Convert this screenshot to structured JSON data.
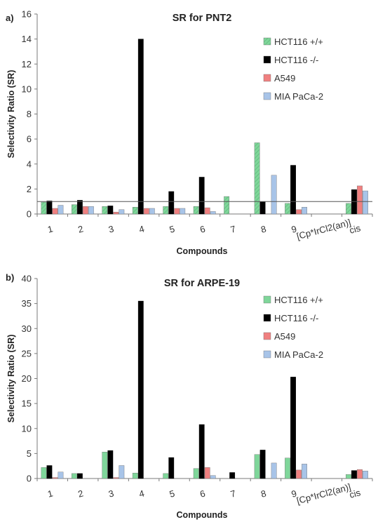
{
  "chart_data": [
    {
      "type": "bar",
      "panel_label": "a)",
      "title": "SR for PNT2",
      "xlabel": "Compounds",
      "ylabel": "Selectivity Ratio (SR)",
      "ylim": [
        0,
        16
      ],
      "yticks": [
        0,
        2,
        4,
        6,
        8,
        10,
        12,
        14,
        16
      ],
      "ref_line": 1,
      "categories": [
        "1",
        "2",
        "3",
        "4",
        "5",
        "6",
        "7",
        "8",
        "9",
        "[Cp*IrCl2(an)]",
        "cis"
      ],
      "series": [
        {
          "name": "HCT116 +/+",
          "color": "#7fd69a",
          "hatched": true,
          "values": [
            0.95,
            0.75,
            0.6,
            0.55,
            0.6,
            0.6,
            1.4,
            5.7,
            0.85,
            null,
            0.85
          ]
        },
        {
          "name": "HCT116 -/-",
          "color": "#000000",
          "hatched": false,
          "values": [
            1.05,
            1.1,
            0.65,
            14.0,
            1.8,
            2.95,
            null,
            0.98,
            3.9,
            null,
            1.95
          ]
        },
        {
          "name": "A549",
          "color": "#f08080",
          "hatched": false,
          "values": [
            0.45,
            0.6,
            0.15,
            0.45,
            0.45,
            0.5,
            null,
            null,
            0.35,
            null,
            2.25
          ]
        },
        {
          "name": "MIA PaCa-2",
          "color": "#a8c4e8",
          "hatched": false,
          "values": [
            0.7,
            0.6,
            0.35,
            0.45,
            0.45,
            0.2,
            null,
            3.1,
            0.55,
            null,
            1.85
          ]
        }
      ],
      "legend_position": "top-right"
    },
    {
      "type": "bar",
      "panel_label": "b)",
      "title": "SR for ARPE-19",
      "xlabel": "Compounds",
      "ylabel": "Selectivity Ratio (SR)",
      "ylim": [
        0,
        40
      ],
      "yticks": [
        0,
        5,
        10,
        15,
        20,
        25,
        30,
        35,
        40
      ],
      "ref_line": null,
      "categories": [
        "1",
        "2",
        "3",
        "4",
        "5",
        "6",
        "7",
        "8",
        "9",
        "[Cp*IrCl2(an)]",
        "cis"
      ],
      "series": [
        {
          "name": "HCT116 +/+",
          "color": "#7fd69a",
          "hatched": false,
          "values": [
            2.2,
            1.0,
            5.3,
            1.1,
            1.0,
            2.0,
            null,
            4.8,
            4.1,
            null,
            0.8
          ]
        },
        {
          "name": "HCT116 -/-",
          "color": "#000000",
          "hatched": false,
          "values": [
            2.6,
            1.0,
            5.6,
            35.5,
            4.2,
            10.8,
            1.2,
            5.7,
            20.3,
            null,
            1.6
          ]
        },
        {
          "name": "A549",
          "color": "#f08080",
          "hatched": false,
          "values": [
            0.2,
            null,
            0.2,
            null,
            null,
            2.2,
            null,
            null,
            1.7,
            null,
            1.8
          ]
        },
        {
          "name": "MIA PaCa-2",
          "color": "#a8c4e8",
          "hatched": false,
          "values": [
            1.3,
            null,
            2.6,
            null,
            null,
            0.6,
            null,
            3.1,
            2.9,
            null,
            1.5
          ]
        }
      ],
      "legend_position": "top-right"
    }
  ]
}
